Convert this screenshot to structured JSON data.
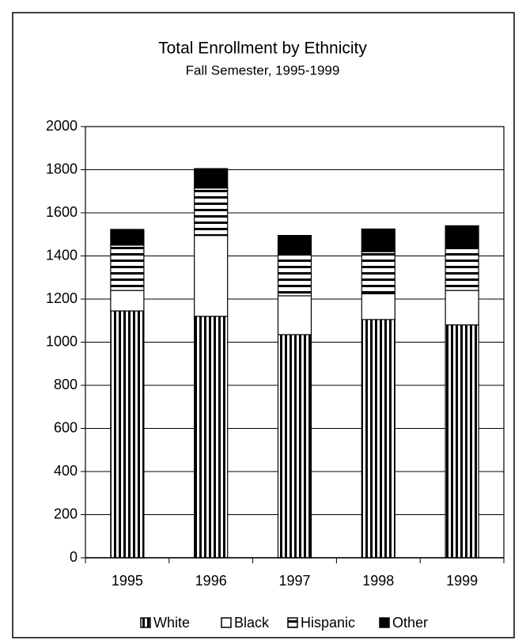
{
  "chart_data": {
    "type": "stacked_bar",
    "title": "Total Enrollment by Ethnicity",
    "subtitle": "Fall Semester, 1995-1999",
    "categories": [
      "1995",
      "1996",
      "1997",
      "1998",
      "1999"
    ],
    "series": [
      {
        "name": "White",
        "color": "#000000",
        "pattern": "vertical",
        "values": [
          1145,
          1120,
          1035,
          1105,
          1080
        ]
      },
      {
        "name": "Black",
        "color": "#000000",
        "pattern": "none",
        "values": [
          95,
          375,
          180,
          120,
          160
        ]
      },
      {
        "name": "Hispanic",
        "color": "#000000",
        "pattern": "horizontal",
        "values": [
          210,
          220,
          190,
          195,
          200
        ]
      },
      {
        "name": "Other",
        "color": "#000000",
        "pattern": "solid",
        "values": [
          73,
          90,
          90,
          105,
          100
        ]
      }
    ],
    "ylim": [
      0,
      2000
    ],
    "yticks": [
      0,
      200,
      400,
      600,
      800,
      1000,
      1200,
      1400,
      1600,
      1800,
      2000
    ],
    "grid": true,
    "legend": "bottom"
  }
}
